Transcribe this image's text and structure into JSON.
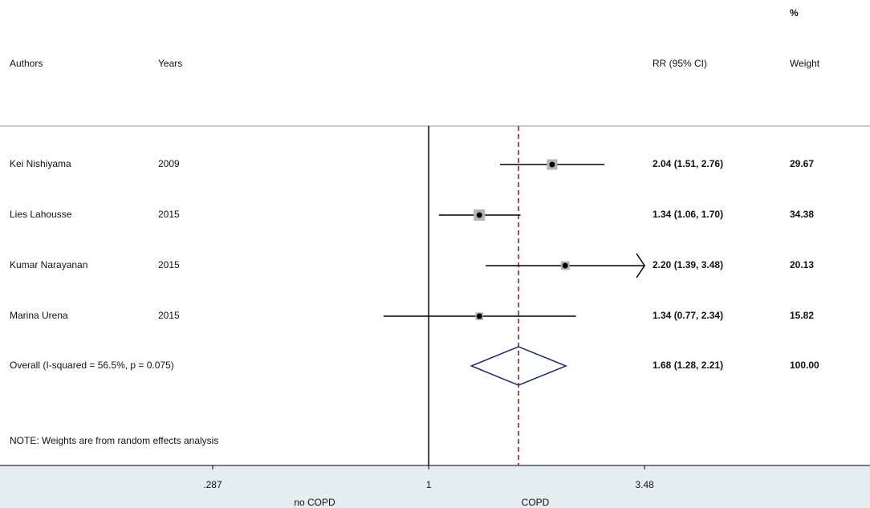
{
  "chart_data": {
    "type": "forest",
    "headers": {
      "weight_pct": "%",
      "authors": "Authors",
      "years": "Years",
      "ci": "RR (95% CI)",
      "weight": "Weight"
    },
    "studies": [
      {
        "author": "Kei Nishiyama",
        "year": "2009",
        "estimate": 2.04,
        "lower": 1.51,
        "upper": 2.76,
        "ci_label": "2.04 (1.51, 2.76)",
        "weight": 29.67,
        "weight_label": "29.67"
      },
      {
        "author": "Lies Lahousse",
        "year": "2015",
        "estimate": 1.34,
        "lower": 1.06,
        "upper": 1.7,
        "ci_label": "1.34 (1.06, 1.70)",
        "weight": 34.38,
        "weight_label": "34.38"
      },
      {
        "author": "Kumar Narayanan",
        "year": "2015",
        "estimate": 2.2,
        "lower": 1.39,
        "upper": 3.48,
        "ci_label": "2.20 (1.39, 3.48)",
        "weight": 20.13,
        "weight_label": "20.13"
      },
      {
        "author": "Marina Urena",
        "year": "2015",
        "estimate": 1.34,
        "lower": 0.77,
        "upper": 2.34,
        "ci_label": "1.34 (0.77, 2.34)",
        "weight": 15.82,
        "weight_label": "15.82"
      }
    ],
    "overall": {
      "label": "Overall  (I-squared = 56.5%, p = 0.075)",
      "estimate": 1.68,
      "lower": 1.28,
      "upper": 2.21,
      "ci_label": "1.68 (1.28, 2.21)",
      "weight": 100,
      "weight_label": "100.00"
    },
    "note": "NOTE: Weights are from random effects analysis",
    "log_scale": true,
    "xlim": [
      0.084,
      12.8
    ],
    "xticks": [
      {
        "value": 0.287,
        "label": ".287"
      },
      1,
      3.48
    ],
    "x_side_labels": {
      "left": "no COPD",
      "right": "COPD"
    },
    "colors": {
      "box": "#b4b4b4",
      "diamond": "#1f2a6b",
      "overall_line": "#8b1a1a"
    }
  }
}
